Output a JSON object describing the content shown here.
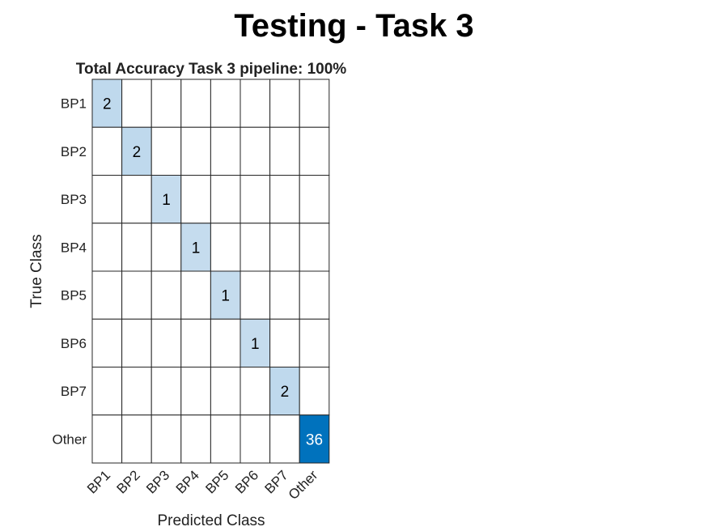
{
  "figure": {
    "suptitle": "Testing - Task 3"
  },
  "chart_data": {
    "type": "heatmap",
    "title": "Total Accuracy Task 3 pipeline: 100%",
    "xlabel": "Predicted Class",
    "ylabel": "True Class",
    "row_labels": [
      "BP1",
      "BP2",
      "BP3",
      "BP4",
      "BP5",
      "BP6",
      "BP7",
      "Other"
    ],
    "col_labels": [
      "BP1",
      "BP2",
      "BP3",
      "BP4",
      "BP5",
      "BP6",
      "BP7",
      "Other"
    ],
    "matrix": [
      [
        2,
        0,
        0,
        0,
        0,
        0,
        0,
        0
      ],
      [
        0,
        2,
        0,
        0,
        0,
        0,
        0,
        0
      ],
      [
        0,
        0,
        1,
        0,
        0,
        0,
        0,
        0
      ],
      [
        0,
        0,
        0,
        1,
        0,
        0,
        0,
        0
      ],
      [
        0,
        0,
        0,
        0,
        1,
        0,
        0,
        0
      ],
      [
        0,
        0,
        0,
        0,
        0,
        1,
        0,
        0
      ],
      [
        0,
        0,
        0,
        0,
        0,
        0,
        2,
        0
      ],
      [
        0,
        0,
        0,
        0,
        0,
        0,
        0,
        36
      ]
    ],
    "hide_zero_cells": true,
    "colors": {
      "low": "#ffffff",
      "light": "#c5dcee",
      "high": "#0072bd",
      "grid": "#262626",
      "text_dark": "#000000",
      "text_light": "#ffffff"
    }
  }
}
